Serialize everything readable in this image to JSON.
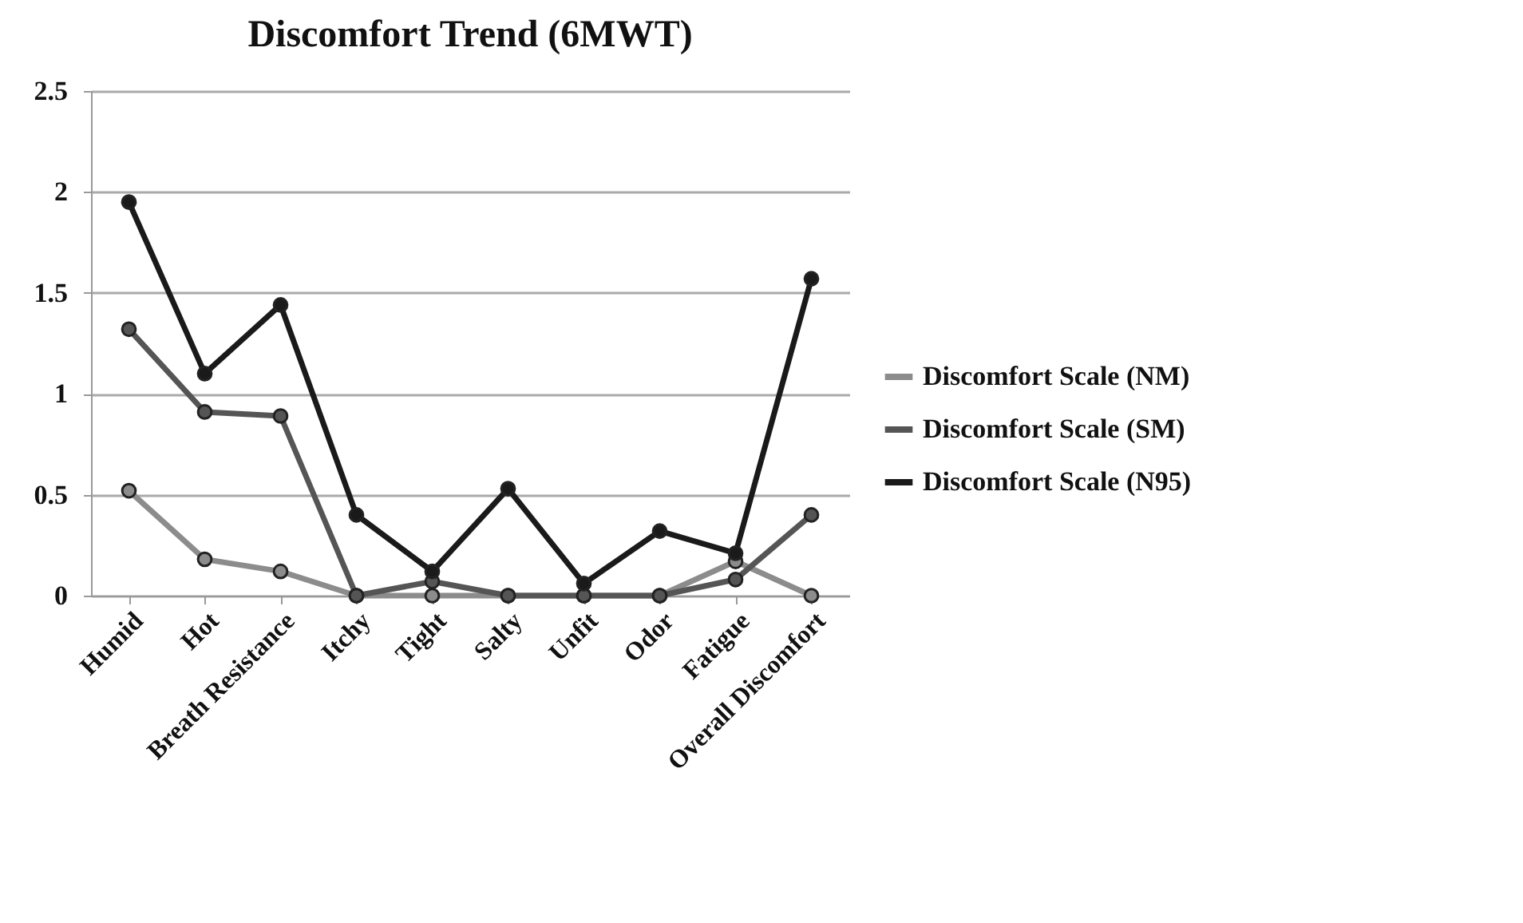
{
  "chart_data": {
    "type": "line",
    "title": "Discomfort Trend (6MWT)",
    "categories": [
      "Humid",
      "Hot",
      "Breath Resistance",
      "Itchy",
      "Tight",
      "Salty",
      "Unfit",
      "Odor",
      "Fatigue",
      "Overall Discomfort"
    ],
    "series": [
      {
        "name": "Discomfort Scale (NM)",
        "color": "#8c8c8c",
        "values": [
          0.52,
          0.18,
          0.12,
          0,
          0,
          0,
          0,
          0,
          0.17,
          0
        ]
      },
      {
        "name": "Discomfort Scale (SM)",
        "color": "#555555",
        "values": [
          1.32,
          0.91,
          0.89,
          0,
          0.07,
          0,
          0,
          0,
          0.08,
          0.4
        ]
      },
      {
        "name": "Discomfort Scale (N95)",
        "color": "#1a1a1a",
        "values": [
          1.95,
          1.1,
          1.44,
          0.4,
          0.12,
          0.53,
          0.06,
          0.32,
          0.21,
          1.57
        ]
      }
    ],
    "ylim": [
      0,
      2.5
    ],
    "yticks": [
      0,
      0.5,
      1,
      1.5,
      2,
      2.5
    ],
    "grid": "y",
    "legend": "right",
    "marker": "circle",
    "line_style": "solid"
  }
}
